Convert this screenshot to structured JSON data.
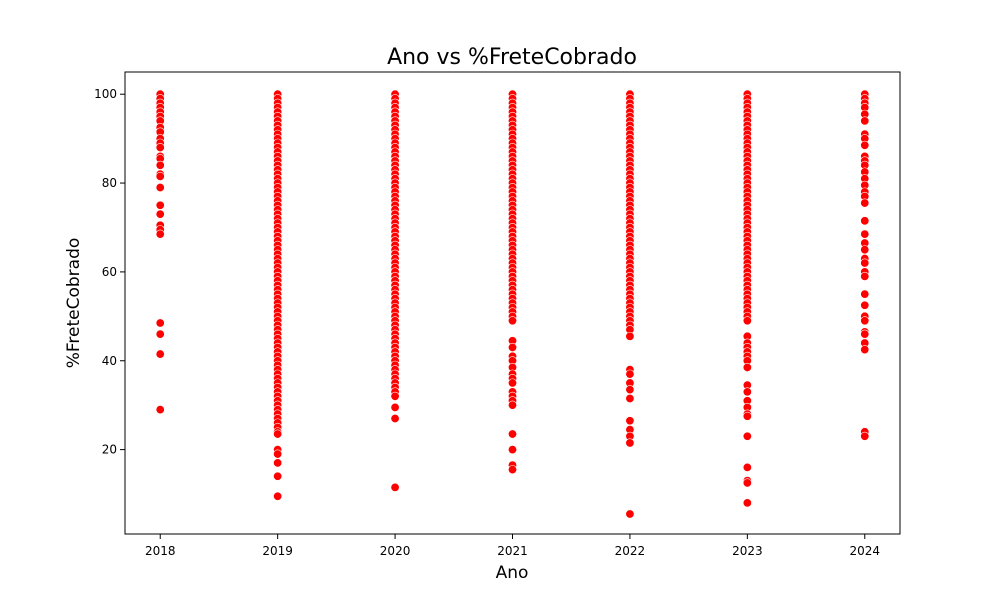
{
  "chart_data": {
    "type": "scatter",
    "title": "Ano vs %FreteCobrado",
    "xlabel": "Ano",
    "ylabel": "%FreteCobrado",
    "x_ticks": [
      2018,
      2019,
      2020,
      2021,
      2022,
      2023,
      2024
    ],
    "y_ticks": [
      20,
      40,
      60,
      80,
      100
    ],
    "xlim": [
      2017.7,
      2024.3
    ],
    "ylim": [
      1,
      105
    ],
    "grid": false,
    "marker_color": "#ff0000",
    "series": [
      {
        "points": [
          {
            "x": 2018,
            "ys": [
              100,
              99,
              98,
              97,
              96,
              95,
              94,
              92.5,
              91.5,
              90,
              89,
              88,
              86,
              85.5,
              84,
              82,
              81.5,
              79,
              75,
              73,
              70.5,
              69.5,
              68.5,
              48.5,
              46,
              41.5,
              29
            ]
          },
          {
            "x": 2019,
            "ys": [
              100,
              99,
              98,
              97,
              96,
              95,
              94,
              93,
              92,
              91,
              90,
              89,
              88,
              87,
              86,
              85,
              84,
              83,
              82,
              81,
              80,
              79,
              78,
              77,
              76,
              75,
              74,
              73,
              72,
              71,
              70,
              69,
              68,
              67,
              66,
              65,
              64,
              63,
              62,
              61,
              60,
              59,
              58,
              57,
              56,
              55,
              54,
              53,
              52,
              51,
              50,
              49,
              48,
              47,
              46,
              45,
              44,
              43,
              42,
              41,
              40,
              39,
              38,
              37,
              36,
              35,
              34,
              33,
              32,
              31,
              30,
              29,
              28,
              27,
              26,
              25,
              24,
              23.5,
              20,
              19,
              17,
              14,
              9.5
            ]
          },
          {
            "x": 2020,
            "ys": [
              100,
              99,
              98,
              97,
              96,
              95,
              94,
              93,
              92,
              91,
              90,
              89,
              88,
              87,
              86,
              85,
              84,
              83,
              82,
              81,
              80,
              79,
              78,
              77,
              76,
              75,
              74,
              73,
              72,
              71,
              70,
              69,
              68,
              67,
              66,
              65,
              64,
              63,
              62,
              61,
              60,
              59,
              58,
              57,
              56,
              55,
              54,
              53,
              52,
              51,
              50,
              49,
              48,
              47,
              46,
              45,
              44,
              43,
              42,
              41,
              40,
              39,
              38,
              37,
              36,
              35,
              34,
              33,
              32,
              29.5,
              27,
              11.5
            ]
          },
          {
            "x": 2021,
            "ys": [
              100,
              99,
              98,
              97,
              96,
              95,
              94,
              93,
              92,
              91,
              90,
              89,
              88,
              87,
              86,
              85,
              84,
              83,
              82,
              81,
              80,
              79,
              78,
              77,
              76,
              75,
              74,
              73,
              72,
              71,
              70,
              69,
              68,
              67,
              66,
              65,
              64,
              63,
              62,
              61,
              60,
              59,
              58,
              57,
              56,
              55,
              54,
              53,
              52,
              51,
              50,
              49,
              44.5,
              43,
              41,
              40,
              38.5,
              37,
              36,
              35,
              33,
              32,
              31,
              30,
              23.5,
              20,
              16.5,
              15.5
            ]
          },
          {
            "x": 2022,
            "ys": [
              100,
              99,
              98,
              97,
              96,
              95,
              94,
              93,
              92,
              91,
              90,
              89,
              88,
              87,
              86,
              85,
              84,
              83,
              82,
              81,
              80,
              79,
              78,
              77,
              76,
              75,
              74,
              73,
              72,
              71,
              70,
              69,
              68,
              67,
              66,
              65,
              64,
              63,
              62,
              61,
              60,
              59,
              58,
              57,
              56,
              55,
              54,
              53,
              52,
              51,
              50,
              49,
              48,
              47,
              45.5,
              38,
              37,
              35,
              33.5,
              31.5,
              26.5,
              24.5,
              23,
              21.5,
              5.5
            ]
          },
          {
            "x": 2023,
            "ys": [
              100,
              99,
              98,
              97,
              96,
              95,
              94,
              93,
              92,
              91,
              90,
              89,
              88,
              87,
              86,
              85,
              84,
              83,
              82,
              81,
              80,
              79,
              78,
              77,
              76,
              75,
              74,
              73,
              72,
              71,
              70,
              69,
              68,
              67,
              66,
              65,
              64,
              63,
              62,
              61,
              60,
              59,
              58,
              57,
              56,
              55,
              54,
              53,
              52,
              51,
              50,
              49,
              45.5,
              44,
              43,
              42,
              41,
              40,
              38.5,
              34.5,
              33,
              31,
              29.5,
              28,
              27.5,
              23,
              16,
              13,
              12.5,
              8
            ]
          },
          {
            "x": 2024,
            "ys": [
              100,
              99,
              98,
              97,
              95.5,
              94,
              91,
              90,
              88.5,
              86,
              85,
              84,
              82.5,
              81,
              79.5,
              78,
              77,
              75.5,
              71.5,
              68.5,
              66.5,
              65,
              63,
              62,
              60,
              59,
              55,
              52.5,
              50,
              49,
              46.5,
              46,
              44,
              42.5,
              24,
              23
            ]
          }
        ]
      }
    ]
  }
}
